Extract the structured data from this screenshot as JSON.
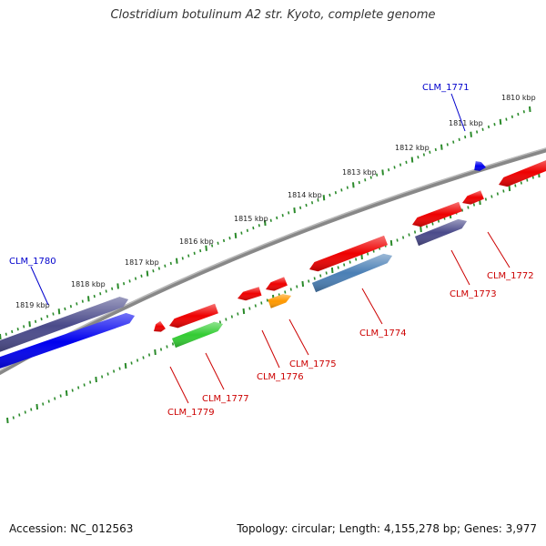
{
  "title": "Clostridium botulinum A2 str. Kyoto, complete genome",
  "footer": {
    "accession": "Accession: NC_012563",
    "topology": "Topology: circular; Length: 4,155,278 bp; Genes: 3,977"
  },
  "colors": {
    "backbone": "#888888",
    "tick": "#2a8a2a",
    "label_red": "#cc0000",
    "label_blue": "#0000cc",
    "red": "#ee0000",
    "dark_purple": "#4a4a8a",
    "blue": "#0000ee",
    "green": "#33cc33",
    "orange": "#ff9900",
    "steel_blue": "#4a7fb5"
  },
  "tick_labels": [
    "1810 kbp",
    "1811 kbp",
    "1812 kbp",
    "1813 kbp",
    "1814 kbp",
    "1815 kbp",
    "1816 kbp",
    "1817 kbp",
    "1818 kbp",
    "1819 kbp"
  ],
  "genes": [
    {
      "label": "CLM_1771",
      "color": "blue"
    },
    {
      "label": "CLM_1772",
      "color": "red"
    },
    {
      "label": "CLM_1773",
      "color": "red"
    },
    {
      "label": "CLM_1774",
      "color": "red"
    },
    {
      "label": "CLM_1775",
      "color": "red"
    },
    {
      "label": "CLM_1776",
      "color": "red"
    },
    {
      "label": "CLM_1777",
      "color": "red"
    },
    {
      "label": "CLM_1779",
      "color": "red"
    },
    {
      "label": "CLM_1780",
      "color": "blue"
    }
  ]
}
